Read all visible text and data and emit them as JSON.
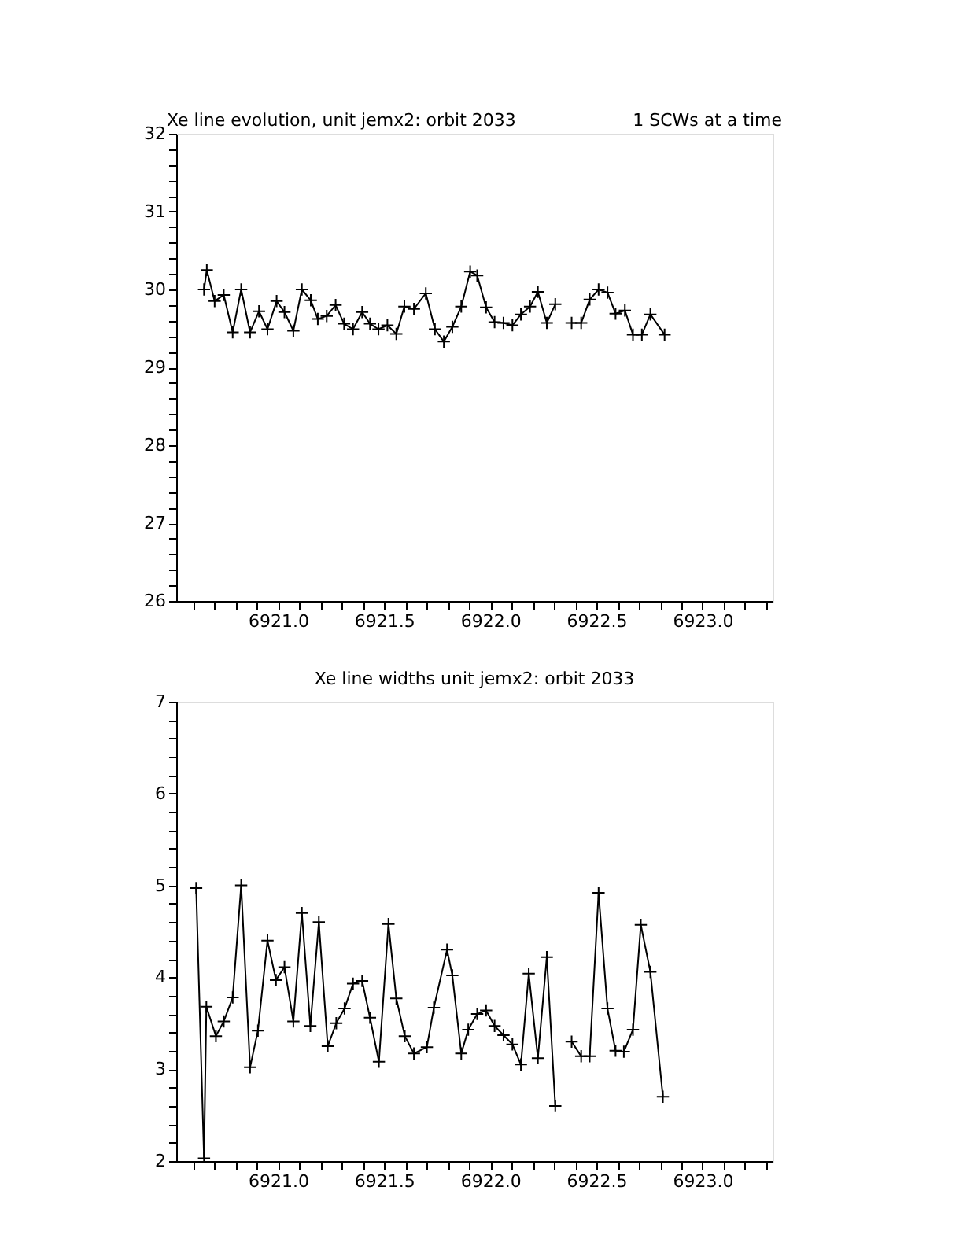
{
  "chart_data": [
    {
      "type": "line",
      "title": "Xe line evolution, unit jemx2: orbit 2033",
      "annotations": [
        "1 SCWs at a time"
      ],
      "marker": "cross",
      "line_style": "solid",
      "grid": false,
      "xlim": [
        6920.52,
        6923.33
      ],
      "ylim": [
        26,
        32
      ],
      "xticks": [
        {
          "value": 6920.6,
          "label": null
        },
        {
          "value": 6920.7,
          "label": null
        },
        {
          "value": 6920.8,
          "label": null
        },
        {
          "value": 6920.9,
          "label": null
        },
        {
          "value": 6921,
          "label": "6921.0"
        },
        {
          "value": 6921.1,
          "label": null
        },
        {
          "value": 6921.2,
          "label": null
        },
        {
          "value": 6921.3,
          "label": null
        },
        {
          "value": 6921.4,
          "label": null
        },
        {
          "value": 6921.5,
          "label": "6921.5"
        },
        {
          "value": 6921.6,
          "label": null
        },
        {
          "value": 6921.7,
          "label": null
        },
        {
          "value": 6921.8,
          "label": null
        },
        {
          "value": 6921.9,
          "label": null
        },
        {
          "value": 6922,
          "label": "6922.0"
        },
        {
          "value": 6922.1,
          "label": null
        },
        {
          "value": 6922.2,
          "label": null
        },
        {
          "value": 6922.3,
          "label": null
        },
        {
          "value": 6922.4,
          "label": null
        },
        {
          "value": 6922.5,
          "label": "6922.5"
        },
        {
          "value": 6922.6,
          "label": null
        },
        {
          "value": 6922.7,
          "label": null
        },
        {
          "value": 6922.8,
          "label": null
        },
        {
          "value": 6922.9,
          "label": null
        },
        {
          "value": 6923,
          "label": "6923.0"
        },
        {
          "value": 6923.1,
          "label": null
        },
        {
          "value": 6923.2,
          "label": null
        },
        {
          "value": 6923.3,
          "label": null
        }
      ],
      "yticks": [
        26,
        {
          "value": 26.2,
          "label": null
        },
        {
          "value": 26.4,
          "label": null
        },
        {
          "value": 26.6,
          "label": null
        },
        {
          "value": 26.8,
          "label": null
        },
        27,
        {
          "value": 27.2,
          "label": null
        },
        {
          "value": 27.4,
          "label": null
        },
        {
          "value": 27.6,
          "label": null
        },
        {
          "value": 27.8,
          "label": null
        },
        28,
        {
          "value": 28.2,
          "label": null
        },
        {
          "value": 28.4,
          "label": null
        },
        {
          "value": 28.6,
          "label": null
        },
        {
          "value": 28.8,
          "label": null
        },
        29,
        {
          "value": 29.2,
          "label": null
        },
        {
          "value": 29.4,
          "label": null
        },
        {
          "value": 29.6,
          "label": null
        },
        {
          "value": 29.8,
          "label": null
        },
        30,
        {
          "value": 30.2,
          "label": null
        },
        {
          "value": 30.4,
          "label": null
        },
        {
          "value": 30.6,
          "label": null
        },
        {
          "value": 30.8,
          "label": null
        },
        31,
        {
          "value": 31.2,
          "label": null
        },
        {
          "value": 31.4,
          "label": null
        },
        {
          "value": 31.6,
          "label": null
        },
        {
          "value": 31.8,
          "label": null
        },
        32
      ],
      "series": [
        {
          "color": "#000000",
          "x": [
            6920.651,
            6920.664,
            6920.701,
            6920.744,
            6920.786,
            6920.826,
            6920.868,
            6920.91,
            6920.95,
            6920.993,
            6921.03,
            6921.072,
            6921.112,
            6921.154,
            6921.187,
            6921.229,
            6921.271,
            6921.311,
            6921.353,
            6921.396,
            6921.433,
            6921.473,
            6921.515,
            6921.557,
            6921.595,
            6921.64,
            6921.696,
            6921.739,
            6921.781,
            6921.821,
            6921.863,
            6921.905,
            6921.938,
            6921.98,
            6922.02,
            6922.062,
            6922.104,
            6922.144,
            6922.187,
            6922.224,
            6922.266,
            6922.306
          ],
          "values": [
            30.0,
            30.25,
            29.85,
            29.93,
            29.45,
            30.0,
            29.45,
            29.72,
            29.49,
            29.85,
            29.71,
            29.47,
            30.0,
            29.86,
            29.62,
            29.66,
            29.8,
            29.56,
            29.49,
            29.71,
            29.56,
            29.49,
            29.54,
            29.43,
            29.78,
            29.75,
            29.95,
            29.49,
            29.33,
            29.52,
            29.78,
            30.23,
            30.18,
            29.77,
            29.58,
            29.57,
            29.54,
            29.68,
            29.78,
            29.97,
            29.57,
            29.81
          ]
        },
        {
          "color": "#000000",
          "x": [
            6922.383,
            6922.428,
            6922.468,
            6922.51,
            6922.552,
            6922.59,
            6922.634,
            6922.672,
            6922.714,
            6922.754,
            6922.821
          ],
          "values": [
            29.57,
            29.57,
            29.87,
            30.0,
            29.96,
            29.69,
            29.73,
            29.42,
            29.42,
            29.68,
            29.42
          ]
        }
      ]
    },
    {
      "type": "line",
      "title": "Xe line widths unit jemx2: orbit 2033",
      "marker": "cross",
      "line_style": "solid",
      "grid": false,
      "xlim": [
        6920.52,
        6923.33
      ],
      "ylim": [
        2,
        7
      ],
      "xticks": [
        {
          "value": 6920.6,
          "label": null
        },
        {
          "value": 6920.7,
          "label": null
        },
        {
          "value": 6920.8,
          "label": null
        },
        {
          "value": 6920.9,
          "label": null
        },
        {
          "value": 6921,
          "label": "6921.0"
        },
        {
          "value": 6921.1,
          "label": null
        },
        {
          "value": 6921.2,
          "label": null
        },
        {
          "value": 6921.3,
          "label": null
        },
        {
          "value": 6921.4,
          "label": null
        },
        {
          "value": 6921.5,
          "label": "6921.5"
        },
        {
          "value": 6921.6,
          "label": null
        },
        {
          "value": 6921.7,
          "label": null
        },
        {
          "value": 6921.8,
          "label": null
        },
        {
          "value": 6921.9,
          "label": null
        },
        {
          "value": 6922,
          "label": "6922.0"
        },
        {
          "value": 6922.1,
          "label": null
        },
        {
          "value": 6922.2,
          "label": null
        },
        {
          "value": 6922.3,
          "label": null
        },
        {
          "value": 6922.4,
          "label": null
        },
        {
          "value": 6922.5,
          "label": "6922.5"
        },
        {
          "value": 6922.6,
          "label": null
        },
        {
          "value": 6922.7,
          "label": null
        },
        {
          "value": 6922.8,
          "label": null
        },
        {
          "value": 6922.9,
          "label": null
        },
        {
          "value": 6923,
          "label": "6923.0"
        },
        {
          "value": 6923.1,
          "label": null
        },
        {
          "value": 6923.2,
          "label": null
        },
        {
          "value": 6923.3,
          "label": null
        }
      ],
      "yticks": [
        2,
        {
          "value": 2.2,
          "label": null
        },
        {
          "value": 2.4,
          "label": null
        },
        {
          "value": 2.6,
          "label": null
        },
        {
          "value": 2.8,
          "label": null
        },
        3,
        {
          "value": 3.2,
          "label": null
        },
        {
          "value": 3.4,
          "label": null
        },
        {
          "value": 3.6,
          "label": null
        },
        {
          "value": 3.8,
          "label": null
        },
        4,
        {
          "value": 4.2,
          "label": null
        },
        {
          "value": 4.4,
          "label": null
        },
        {
          "value": 4.6,
          "label": null
        },
        {
          "value": 4.8,
          "label": null
        },
        5,
        {
          "value": 5.2,
          "label": null
        },
        {
          "value": 5.4,
          "label": null
        },
        {
          "value": 5.6,
          "label": null
        },
        {
          "value": 5.8,
          "label": null
        },
        6,
        {
          "value": 6.2,
          "label": null
        },
        {
          "value": 6.4,
          "label": null
        },
        {
          "value": 6.6,
          "label": null
        },
        {
          "value": 6.8,
          "label": null
        },
        7
      ],
      "series": [
        {
          "color": "#000000",
          "x": [
            6920.614,
            6920.651,
            6920.662,
            6920.707,
            6920.744,
            6920.786,
            6920.826,
            6920.868,
            6920.905,
            6920.95,
            6920.99,
            6921.03,
            6921.072,
            6921.112,
            6921.152,
            6921.192,
            6921.234,
            6921.274,
            6921.313,
            6921.353,
            6921.396,
            6921.433,
            6921.475,
            6921.52,
            6921.557,
            6921.597,
            6921.64,
            6921.701,
            6921.734,
            6921.796,
            6921.821,
            6921.863,
            6921.896,
            6921.938,
            6921.98,
            6922.02,
            6922.062,
            6922.104,
            6922.144,
            6922.181,
            6922.224,
            6922.266,
            6922.306
          ],
          "values": [
            4.97,
            2.03,
            3.68,
            3.36,
            3.52,
            3.78,
            5.0,
            3.02,
            3.42,
            4.4,
            3.97,
            4.11,
            3.52,
            4.7,
            3.47,
            4.6,
            3.25,
            3.5,
            3.66,
            3.93,
            3.96,
            3.56,
            3.08,
            4.58,
            3.77,
            3.36,
            3.17,
            3.24,
            3.67,
            4.3,
            4.02,
            3.17,
            3.43,
            3.6,
            3.64,
            3.47,
            3.37,
            3.27,
            3.05,
            4.04,
            3.12,
            4.22,
            2.6
          ]
        },
        {
          "color": "#000000",
          "x": [
            6922.383,
            6922.428,
            6922.468,
            6922.51,
            6922.552,
            6922.59,
            6922.629,
            6922.672,
            6922.709,
            6922.754,
            6922.813
          ],
          "values": [
            3.3,
            3.14,
            3.14,
            4.92,
            3.66,
            3.2,
            3.19,
            3.43,
            4.57,
            4.06,
            2.7
          ]
        }
      ]
    }
  ]
}
